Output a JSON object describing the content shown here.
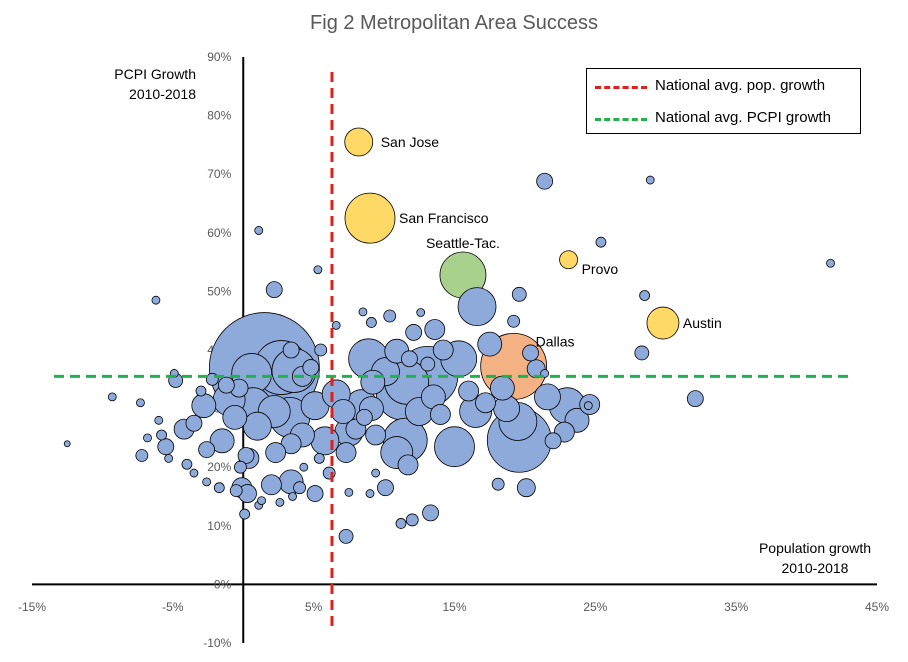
{
  "chart_data": {
    "type": "scatter",
    "title": "Fig 2 Metropolitan Area Success",
    "xlabel": [
      "Population growth",
      "2010-2018"
    ],
    "ylabel": [
      "PCPI Growth",
      "2010-2018"
    ],
    "xlim": [
      -15,
      45
    ],
    "ylim": [
      -10,
      90
    ],
    "x_ticks": [
      "-15%",
      "-5%",
      "5%",
      "15%",
      "25%",
      "35%",
      "45%"
    ],
    "x_tick_values": [
      -15,
      -5,
      5,
      15,
      25,
      35,
      45
    ],
    "y_ticks": [
      "-10%",
      "0%",
      "10%",
      "20%",
      "30%",
      "40%",
      "50%",
      "60%",
      "70%",
      "80%",
      "90%"
    ],
    "y_tick_values": [
      -10,
      0,
      10,
      20,
      30,
      40,
      50,
      60,
      70,
      80,
      90
    ],
    "grid": false,
    "legend": {
      "placement": "top-right",
      "entries": [
        {
          "label": "National avg. pop. growth",
          "color": "#e0201b",
          "style": "dashed"
        },
        {
          "label": "National avg. PCPI growth",
          "color": "#22b14c",
          "style": "dashed"
        }
      ]
    },
    "reference_lines": {
      "national_avg_pop_growth": 6.3,
      "national_avg_pcpi_growth": 35.5
    },
    "colors": {
      "default": "#8eaadb",
      "highlight_yellow": "#ffd966",
      "highlight_green": "#a9d18e",
      "highlight_orange": "#f4b183",
      "edge": "#000000"
    },
    "labeled_points": [
      {
        "name": "San Jose",
        "x": 8.2,
        "y": 75.5,
        "size": 14,
        "color": "#ffd966"
      },
      {
        "name": "San Francisco",
        "x": 9.0,
        "y": 62.5,
        "size": 25,
        "color": "#ffd966"
      },
      {
        "name": "Seattle-Tac.",
        "x": 15.6,
        "y": 52.8,
        "size": 23,
        "color": "#a9d18e"
      },
      {
        "name": "Provo",
        "x": 23.1,
        "y": 55.4,
        "size": 9,
        "color": "#ffd966"
      },
      {
        "name": "Austin",
        "x": 29.8,
        "y": 44.6,
        "size": 16,
        "color": "#ffd966"
      },
      {
        "name": "Dallas",
        "x": 19.2,
        "y": 37.2,
        "size": 33,
        "color": "#f4b183"
      }
    ],
    "points": [
      [
        1.5,
        37,
        55
      ],
      [
        2.7,
        37,
        27
      ],
      [
        0.6,
        36,
        20
      ],
      [
        3.6,
        36.5,
        22
      ],
      [
        4.2,
        35.5,
        10
      ],
      [
        4.8,
        37,
        8
      ],
      [
        2.2,
        50.3,
        8
      ],
      [
        5.3,
        53.7,
        4
      ],
      [
        1.1,
        60.4,
        4
      ],
      [
        -6.2,
        48.5,
        4
      ],
      [
        8.9,
        38.5,
        20
      ],
      [
        11.6,
        34.5,
        22
      ],
      [
        13.1,
        35.5,
        30
      ],
      [
        11.3,
        32.5,
        26
      ],
      [
        15.3,
        38.5,
        18
      ],
      [
        16.6,
        47.4,
        19
      ],
      [
        12.1,
        43.0,
        8
      ],
      [
        10.4,
        45.8,
        6
      ],
      [
        13.6,
        43.5,
        10
      ],
      [
        17.5,
        41.0,
        12
      ],
      [
        14.2,
        40.0,
        10
      ],
      [
        10.9,
        39.8,
        12
      ],
      [
        10.1,
        36.3,
        14
      ],
      [
        9.2,
        34.5,
        12
      ],
      [
        8.4,
        30.5,
        16
      ],
      [
        12.5,
        29.5,
        14
      ],
      [
        17.2,
        31.0,
        10
      ],
      [
        19.5,
        27.8,
        19
      ],
      [
        18.7,
        30.0,
        13
      ],
      [
        20.8,
        36.8,
        9
      ],
      [
        20.4,
        39.5,
        8
      ],
      [
        23.0,
        30.5,
        18
      ],
      [
        24.6,
        30.7,
        10
      ],
      [
        23.7,
        28.0,
        12
      ],
      [
        22.8,
        26.0,
        10
      ],
      [
        19.6,
        24.6,
        32
      ],
      [
        15.0,
        23.5,
        20
      ],
      [
        11.5,
        24.6,
        22
      ],
      [
        10.9,
        22.5,
        16
      ],
      [
        11.7,
        20.4,
        10
      ],
      [
        9.4,
        25.5,
        10
      ],
      [
        8.6,
        28.5,
        8
      ],
      [
        7.5,
        26.0,
        14
      ],
      [
        7.3,
        22.5,
        10
      ],
      [
        5.8,
        24.5,
        14
      ],
      [
        4.2,
        25.5,
        12
      ],
      [
        3.4,
        24.0,
        10
      ],
      [
        2.3,
        22.5,
        10
      ],
      [
        0.4,
        21.5,
        10
      ],
      [
        -1.5,
        24.5,
        12
      ],
      [
        -2.6,
        23.0,
        8
      ],
      [
        -3.5,
        27.5,
        8
      ],
      [
        -5.5,
        23.5,
        8
      ],
      [
        -4.2,
        26.5,
        10
      ],
      [
        1.0,
        27.0,
        14
      ],
      [
        2.2,
        29.5,
        16
      ],
      [
        3.3,
        28.5,
        20
      ],
      [
        0.7,
        30.5,
        18
      ],
      [
        -1.0,
        31.5,
        16
      ],
      [
        -2.8,
        30.5,
        12
      ],
      [
        -0.6,
        28.5,
        12
      ],
      [
        5.1,
        30.5,
        14
      ],
      [
        6.6,
        32.5,
        14
      ],
      [
        7.1,
        29.5,
        12
      ],
      [
        8.0,
        26.5,
        10
      ],
      [
        9.1,
        30.0,
        12
      ],
      [
        14.0,
        29.0,
        10
      ],
      [
        13.5,
        32.0,
        12
      ],
      [
        16.0,
        33.0,
        10
      ],
      [
        16.5,
        29.5,
        16
      ],
      [
        18.4,
        33.5,
        12
      ],
      [
        21.6,
        32.0,
        13
      ],
      [
        22.0,
        24.5,
        8
      ],
      [
        -9.3,
        32.0,
        4
      ],
      [
        -12.5,
        24.0,
        3
      ],
      [
        -7.3,
        31.0,
        4
      ],
      [
        -6.0,
        28.0,
        4
      ],
      [
        -4.9,
        36.0,
        4
      ],
      [
        -4.8,
        34.8,
        7
      ],
      [
        -3.0,
        33.0,
        5
      ],
      [
        -2.2,
        35.0,
        6
      ],
      [
        -1.2,
        34.0,
        8
      ],
      [
        -0.3,
        33.5,
        9
      ],
      [
        -5.8,
        25.5,
        5
      ],
      [
        -6.8,
        25.0,
        4
      ],
      [
        -7.2,
        22.0,
        6
      ],
      [
        -5.3,
        21.5,
        4
      ],
      [
        -4.0,
        20.5,
        5
      ],
      [
        -3.5,
        19.0,
        4
      ],
      [
        -2.6,
        17.5,
        4
      ],
      [
        -1.7,
        16.5,
        5
      ],
      [
        -0.5,
        16.0,
        6
      ],
      [
        -0.2,
        20.0,
        6
      ],
      [
        0.2,
        22.0,
        8
      ],
      [
        -0.1,
        16.5,
        10
      ],
      [
        0.1,
        12.0,
        5
      ],
      [
        0.3,
        15.5,
        9
      ],
      [
        1.1,
        13.5,
        4
      ],
      [
        2.0,
        17.0,
        10
      ],
      [
        3.4,
        17.5,
        12
      ],
      [
        4.0,
        16.5,
        6
      ],
      [
        5.1,
        15.5,
        8
      ],
      [
        6.1,
        19.0,
        6
      ],
      [
        5.4,
        21.5,
        5
      ],
      [
        4.3,
        20.0,
        4
      ],
      [
        1.3,
        14.3,
        4
      ],
      [
        2.6,
        14.0,
        4
      ],
      [
        3.5,
        15.0,
        4
      ],
      [
        7.3,
        8.2,
        7
      ],
      [
        7.5,
        15.7,
        4
      ],
      [
        9.0,
        15.5,
        4
      ],
      [
        9.4,
        19.0,
        4
      ],
      [
        10.1,
        16.5,
        8
      ],
      [
        11.2,
        10.4,
        5
      ],
      [
        12.0,
        11.0,
        6
      ],
      [
        13.3,
        12.2,
        8
      ],
      [
        18.1,
        17.1,
        6
      ],
      [
        20.1,
        16.5,
        9
      ],
      [
        24.5,
        30.5,
        4
      ],
      [
        21.4,
        68.8,
        8
      ],
      [
        28.9,
        69.0,
        4
      ],
      [
        25.4,
        58.4,
        5
      ],
      [
        28.5,
        49.3,
        5
      ],
      [
        28.3,
        39.5,
        7
      ],
      [
        32.1,
        31.7,
        8
      ],
      [
        41.7,
        54.8,
        4
      ],
      [
        6.6,
        44.2,
        4
      ],
      [
        8.5,
        46.5,
        4
      ],
      [
        9.1,
        44.7,
        5
      ],
      [
        5.5,
        40.0,
        6
      ],
      [
        3.4,
        40.0,
        8
      ],
      [
        12.6,
        46.4,
        4
      ],
      [
        19.6,
        49.5,
        7
      ],
      [
        19.2,
        44.9,
        6
      ],
      [
        21.4,
        36.0,
        4
      ],
      [
        11.8,
        38.5,
        8
      ],
      [
        13.1,
        37.6,
        7
      ]
    ]
  }
}
